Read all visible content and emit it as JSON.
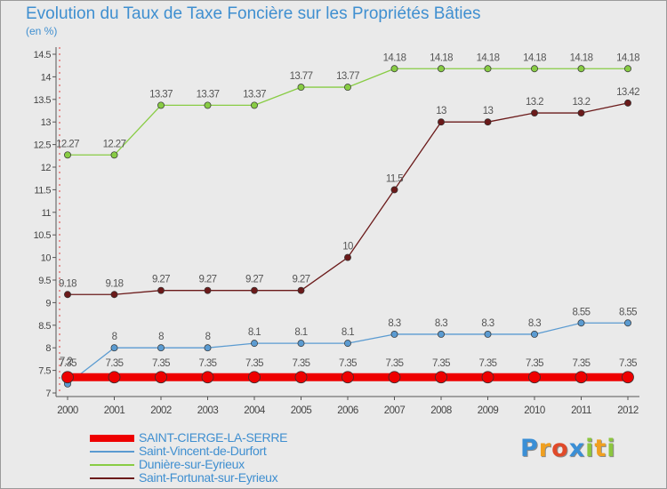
{
  "chart_data": {
    "type": "line",
    "title": "Evolution du Taux de Taxe Foncière sur les Propriétés Bâties",
    "subtitle": "(en %)",
    "x": [
      "2000",
      "2001",
      "2002",
      "2003",
      "2004",
      "2005",
      "2006",
      "2007",
      "2008",
      "2009",
      "2010",
      "2011",
      "2012"
    ],
    "ylim": [
      7,
      14.5
    ],
    "yticks": [
      "7",
      "7.5",
      "8",
      "8.5",
      "9",
      "9.5",
      "10",
      "10.5",
      "11",
      "11.5",
      "12",
      "12.5",
      "13",
      "13.5",
      "14",
      "14.5"
    ],
    "series": [
      {
        "name": "SAINT-CIERGE-LA-SERRE",
        "color": "#ee0000",
        "values": [
          7.35,
          7.35,
          7.35,
          7.35,
          7.35,
          7.35,
          7.35,
          7.35,
          7.35,
          7.35,
          7.35,
          7.35,
          7.35
        ],
        "labels": [
          "7.35",
          "7.35",
          "7.35",
          "7.35",
          "7.35",
          "7.35",
          "7.35",
          "7.35",
          "7.35",
          "7.35",
          "7.35",
          "7.35",
          "7.35"
        ]
      },
      {
        "name": "Saint-Vincent-de-Durfort",
        "color": "#5b9bd1",
        "values": [
          7.2,
          8,
          8,
          8,
          8.1,
          8.1,
          8.1,
          8.3,
          8.3,
          8.3,
          8.3,
          8.55,
          8.55
        ],
        "labels": [
          "7.2",
          "8",
          "8",
          "8",
          "8.1",
          "8.1",
          "8.1",
          "8.3",
          "8.3",
          "8.3",
          "8.3",
          "8.55",
          "8.55"
        ]
      },
      {
        "name": "Dunière-sur-Eyrieux",
        "color": "#88cc44",
        "values": [
          12.27,
          12.27,
          13.37,
          13.37,
          13.37,
          13.77,
          13.77,
          14.18,
          14.18,
          14.18,
          14.18,
          14.18,
          14.18
        ],
        "labels": [
          "12.27",
          "12.27",
          "13.37",
          "13.37",
          "13.37",
          "13.77",
          "13.77",
          "14.18",
          "14.18",
          "14.18",
          "14.18",
          "14.18",
          "14.18"
        ]
      },
      {
        "name": "Saint-Fortunat-sur-Eyrieux",
        "color": "#6b1a1a",
        "values": [
          9.18,
          9.18,
          9.27,
          9.27,
          9.27,
          9.27,
          10,
          11.5,
          13,
          13,
          13.2,
          13.2,
          13.42
        ],
        "labels": [
          "9.18",
          "9.18",
          "9.27",
          "9.27",
          "9.27",
          "9.27",
          "10",
          "11.5",
          "13",
          "13",
          "13.2",
          "13.2",
          "13.42"
        ]
      }
    ],
    "grid": false,
    "legend_position": "bottom-left"
  },
  "brand": {
    "letters": [
      "P",
      "r",
      "o",
      "x",
      "i",
      "t",
      "i"
    ],
    "colors": [
      "#3a8fd6",
      "#f0a020",
      "#e04a2a",
      "#3a8fd6",
      "#8cc63f",
      "#f0a020",
      "#8cc63f"
    ]
  }
}
